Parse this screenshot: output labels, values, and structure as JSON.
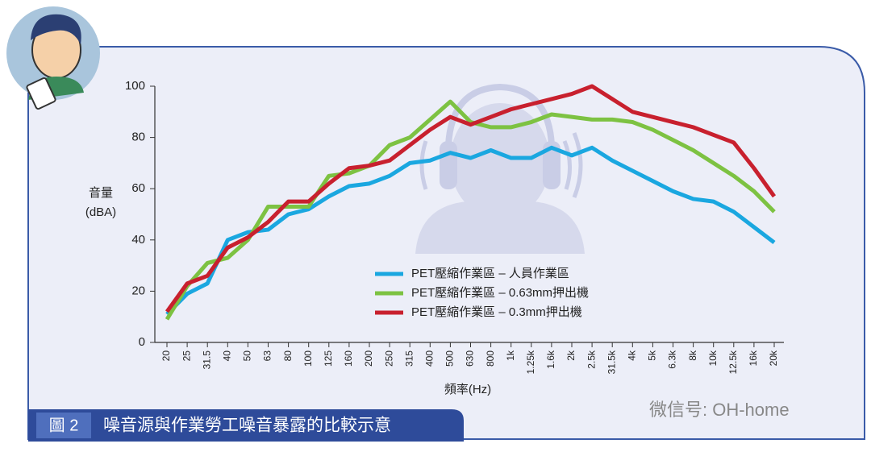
{
  "chart_data": {
    "type": "line",
    "ylabel_lines": [
      "音量",
      "(dBA)"
    ],
    "xlabel": "頻率(Hz)",
    "categories": [
      "20",
      "25",
      "31.5",
      "40",
      "50",
      "63",
      "80",
      "100",
      "125",
      "160",
      "200",
      "250",
      "315",
      "400",
      "500",
      "630",
      "800",
      "1k",
      "1.25k",
      "1.6k",
      "2k",
      "2.5k",
      "31.5k",
      "4k",
      "5k",
      "6.3k",
      "8k",
      "10k",
      "12.5k",
      "16k",
      "20k"
    ],
    "series": [
      {
        "name": "PET壓縮作業區 – 人員作業區",
        "color": "#1aa7e0",
        "values": [
          11,
          19,
          23,
          40,
          43,
          44,
          50,
          52,
          57,
          61,
          62,
          65,
          70,
          71,
          74,
          72,
          75,
          72,
          72,
          76,
          73,
          76,
          71,
          67,
          63,
          59,
          56,
          55,
          51,
          45,
          39
        ]
      },
      {
        "name": "PET壓縮作業區 – 0.63mm押出機",
        "color": "#7dc242",
        "values": [
          9,
          22,
          31,
          33,
          40,
          53,
          53,
          53,
          65,
          66,
          69,
          77,
          80,
          87,
          94,
          86,
          84,
          84,
          86,
          89,
          88,
          87,
          87,
          86,
          83,
          79,
          75,
          70,
          65,
          59,
          51
        ]
      },
      {
        "name": "PET壓縮作業區 – 0.3mm押出機",
        "color": "#c8202e",
        "values": [
          12,
          23,
          26,
          37,
          41,
          47,
          55,
          55,
          62,
          68,
          69,
          71,
          77,
          83,
          88,
          85,
          88,
          91,
          93,
          95,
          97,
          100,
          95,
          90,
          88,
          86,
          84,
          81,
          78,
          68,
          57
        ]
      }
    ],
    "ylim": [
      0,
      100
    ],
    "yticks": [
      0,
      20,
      40,
      60,
      80,
      100
    ]
  },
  "caption": {
    "label": "圖 2",
    "text": "噪音源與作業勞工噪音暴露的比較示意"
  },
  "watermark": "微信号: OH-home"
}
